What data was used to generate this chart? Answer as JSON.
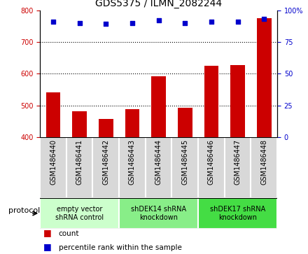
{
  "title": "GDS5375 / ILMN_2082244",
  "categories": [
    "GSM1486440",
    "GSM1486441",
    "GSM1486442",
    "GSM1486443",
    "GSM1486444",
    "GSM1486445",
    "GSM1486446",
    "GSM1486447",
    "GSM1486448"
  ],
  "bar_values": [
    540,
    482,
    458,
    488,
    592,
    492,
    625,
    628,
    775
  ],
  "percentile_values": [
    91,
    90,
    89,
    90,
    92,
    90,
    91,
    91,
    93
  ],
  "bar_color": "#cc0000",
  "dot_color": "#0000cc",
  "ylim_left": [
    400,
    800
  ],
  "ylim_right": [
    0,
    100
  ],
  "yticks_left": [
    400,
    500,
    600,
    700,
    800
  ],
  "yticks_right": [
    0,
    25,
    50,
    75,
    100
  ],
  "grid_lines": [
    500,
    600,
    700
  ],
  "protocols": [
    {
      "label": "empty vector\nshRNA control",
      "start": 0,
      "end": 3,
      "color": "#ccffcc"
    },
    {
      "label": "shDEK14 shRNA\nknockdown",
      "start": 3,
      "end": 6,
      "color": "#88ee88"
    },
    {
      "label": "shDEK17 shRNA\nknockdown",
      "start": 6,
      "end": 9,
      "color": "#44dd44"
    }
  ],
  "legend_count_label": "count",
  "legend_pct_label": "percentile rank within the sample",
  "protocol_label": "protocol",
  "bar_bottom": 400,
  "cell_bg": "#d8d8d8",
  "title_fontsize": 10,
  "tick_fontsize": 7,
  "label_fontsize": 8
}
